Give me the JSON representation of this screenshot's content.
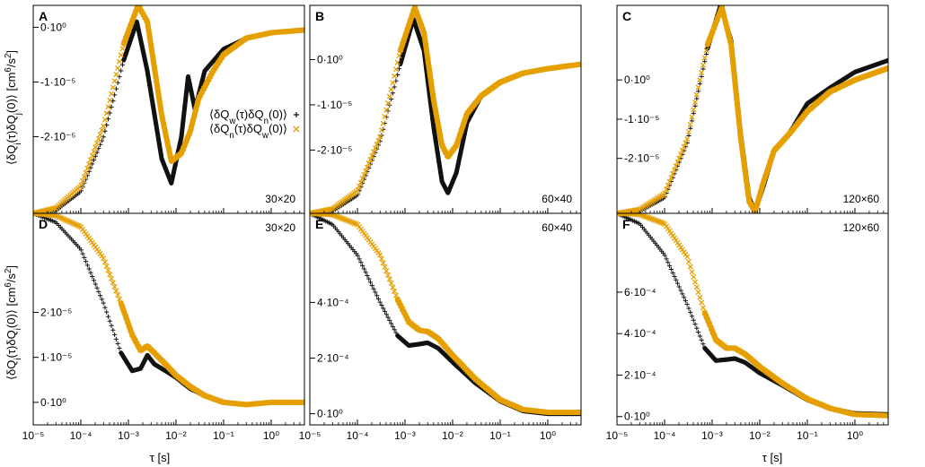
{
  "figure": {
    "ylabel_top": "⟨δQ_i(τ)δQ_j(0)⟩ [cm^6/s^2]",
    "ylabel_bottom": "⟨δQ_i(τ)δQ_i(0)⟩ [cm^6/s^2]",
    "xlabel": "τ [s]"
  },
  "legend": {
    "entries": [
      {
        "label": "⟨δQ_w(τ)δQ_n(0)⟩",
        "marker": "+",
        "color": "#111111"
      },
      {
        "label": "⟨δQ_n(τ)δQ_w(0)⟩",
        "marker": "×",
        "color": "#e69f00"
      }
    ]
  },
  "colors": {
    "black_series": "#111111",
    "orange_series": "#e69f00",
    "frame": "#000000"
  },
  "chart_data": [
    {
      "panel": "A",
      "grid": "30×20",
      "type": "scatter",
      "xscale": "log",
      "xlim": [
        1e-05,
        5
      ],
      "ylim": [
        -3.4e-05,
        4e-06
      ],
      "yticks": [
        {
          "v": 0,
          "label": "0·10⁰"
        },
        {
          "v": -1e-05,
          "label": "-1·10⁻⁵"
        },
        {
          "v": -2e-05,
          "label": "-2·10⁻⁵"
        }
      ],
      "series": [
        {
          "name": "⟨δQ_w(τ)δQ_n(0)⟩",
          "points": [
            [
              1e-05,
              -3.4e-05
            ],
            [
              3e-05,
              -3.35e-05
            ],
            [
              0.0001,
              -3e-05
            ],
            [
              0.0003,
              -2e-05
            ],
            [
              0.0008,
              -6e-06
            ],
            [
              0.0015,
              1e-06
            ],
            [
              0.0025,
              -8e-06
            ],
            [
              0.005,
              -2.4e-05
            ],
            [
              0.008,
              -2.85e-05
            ],
            [
              0.013,
              -2e-05
            ],
            [
              0.018,
              -9e-06
            ],
            [
              0.025,
              -1.5e-05
            ],
            [
              0.04,
              -8e-06
            ],
            [
              0.1,
              -4e-06
            ],
            [
              0.3,
              -2e-06
            ],
            [
              1,
              -1e-06
            ],
            [
              5,
              -5e-07
            ]
          ]
        },
        {
          "name": "⟨δQ_n(τ)δQ_w(0)⟩",
          "points": [
            [
              1e-05,
              -3.4e-05
            ],
            [
              3e-05,
              -3.3e-05
            ],
            [
              0.0001,
              -2.9e-05
            ],
            [
              0.0003,
              -1.8e-05
            ],
            [
              0.0008,
              -3e-06
            ],
            [
              0.0016,
              4e-06
            ],
            [
              0.0025,
              1e-06
            ],
            [
              0.005,
              -1.6e-05
            ],
            [
              0.008,
              -2.45e-05
            ],
            [
              0.013,
              -2.3e-05
            ],
            [
              0.02,
              -1.9e-05
            ],
            [
              0.03,
              -1.3e-05
            ],
            [
              0.06,
              -8e-06
            ],
            [
              0.1,
              -5e-06
            ],
            [
              0.3,
              -2e-06
            ],
            [
              1,
              -1e-06
            ],
            [
              5,
              -5e-07
            ]
          ]
        }
      ]
    },
    {
      "panel": "B",
      "grid": "60×40",
      "type": "scatter",
      "xscale": "log",
      "xlim": [
        1e-05,
        5
      ],
      "ylim": [
        -3.4e-05,
        1.2e-05
      ],
      "yticks": [
        {
          "v": 0,
          "label": "0·10⁰"
        },
        {
          "v": -1e-05,
          "label": "-1·10⁻⁵"
        },
        {
          "v": -2e-05,
          "label": "-2·10⁻⁵"
        }
      ],
      "series": [
        {
          "name": "⟨δQ_w(τ)δQ_n(0)⟩",
          "points": [
            [
              1e-05,
              -3.4e-05
            ],
            [
              3e-05,
              -3.35e-05
            ],
            [
              0.0001,
              -3e-05
            ],
            [
              0.0003,
              -1.8e-05
            ],
            [
              0.0008,
              -1e-06
            ],
            [
              0.0015,
              9e-06
            ],
            [
              0.0025,
              2e-06
            ],
            [
              0.004,
              -1.5e-05
            ],
            [
              0.006,
              -2.7e-05
            ],
            [
              0.008,
              -2.95e-05
            ],
            [
              0.012,
              -2.5e-05
            ],
            [
              0.02,
              -1.4e-05
            ],
            [
              0.04,
              -8e-06
            ],
            [
              0.1,
              -5e-06
            ],
            [
              0.3,
              -3e-06
            ],
            [
              1,
              -2e-06
            ],
            [
              5,
              -1e-06
            ]
          ]
        },
        {
          "name": "⟨δQ_n(τ)δQ_w(0)⟩",
          "points": [
            [
              1e-05,
              -3.4e-05
            ],
            [
              3e-05,
              -3.3e-05
            ],
            [
              0.0001,
              -2.9e-05
            ],
            [
              0.0003,
              -1.7e-05
            ],
            [
              0.0008,
              2e-06
            ],
            [
              0.0016,
              1.15e-05
            ],
            [
              0.0025,
              6e-06
            ],
            [
              0.004,
              -9e-06
            ],
            [
              0.006,
              -1.9e-05
            ],
            [
              0.008,
              -2.15e-05
            ],
            [
              0.012,
              -1.9e-05
            ],
            [
              0.02,
              -1.2e-05
            ],
            [
              0.04,
              -8e-06
            ],
            [
              0.1,
              -5e-06
            ],
            [
              0.3,
              -3e-06
            ],
            [
              1,
              -2e-06
            ],
            [
              5,
              -1e-06
            ]
          ]
        }
      ]
    },
    {
      "panel": "C",
      "grid": "120×60",
      "type": "scatter",
      "xscale": "log",
      "xlim": [
        1e-05,
        5
      ],
      "ylim": [
        -3.4e-05,
        1.9e-05
      ],
      "yticks": [
        {
          "v": 0,
          "label": "0·10⁰"
        },
        {
          "v": -1e-05,
          "label": "-1·10⁻⁵"
        },
        {
          "v": -2e-05,
          "label": "-2·10⁻⁵"
        }
      ],
      "series": [
        {
          "name": "⟨δQ_w(τ)δQ_n(0)⟩",
          "points": [
            [
              1e-05,
              -3.4e-05
            ],
            [
              3e-05,
              -3.35e-05
            ],
            [
              0.0001,
              -3e-05
            ],
            [
              0.0003,
              -1.6e-05
            ],
            [
              0.0008,
              8e-06
            ],
            [
              0.0015,
              1.9e-05
            ],
            [
              0.0025,
              1e-05
            ],
            [
              0.004,
              -1.4e-05
            ],
            [
              0.006,
              -3e-05
            ],
            [
              0.008,
              -3.35e-05
            ],
            [
              0.012,
              -2.7e-05
            ],
            [
              0.02,
              -1.8e-05
            ],
            [
              0.04,
              -1.4e-05
            ],
            [
              0.1,
              -6e-06
            ],
            [
              0.3,
              -2e-06
            ],
            [
              1,
              2e-06
            ],
            [
              5,
              5e-06
            ]
          ]
        },
        {
          "name": "⟨δQ_n(τ)δQ_w(0)⟩",
          "points": [
            [
              1e-05,
              -3.4e-05
            ],
            [
              3e-05,
              -3.3e-05
            ],
            [
              0.0001,
              -2.9e-05
            ],
            [
              0.0003,
              -1.5e-05
            ],
            [
              0.0008,
              9e-06
            ],
            [
              0.0016,
              1.85e-05
            ],
            [
              0.0025,
              9e-06
            ],
            [
              0.004,
              -1.5e-05
            ],
            [
              0.006,
              -3.1e-05
            ],
            [
              0.008,
              -3.35e-05
            ],
            [
              0.012,
              -2.6e-05
            ],
            [
              0.02,
              -1.8e-05
            ],
            [
              0.04,
              -1.4e-05
            ],
            [
              0.1,
              -8e-06
            ],
            [
              0.3,
              -3e-06
            ],
            [
              1,
              0.0
            ],
            [
              5,
              3e-06
            ]
          ]
        }
      ]
    },
    {
      "panel": "D",
      "grid": "30×20",
      "type": "scatter",
      "xscale": "log",
      "xlim": [
        1e-05,
        5
      ],
      "ylim": [
        -5e-06,
        4.2e-05
      ],
      "yticks": [
        {
          "v": 0,
          "label": "0·10⁰"
        },
        {
          "v": 1e-05,
          "label": "1·10⁻⁵"
        },
        {
          "v": 2e-05,
          "label": "2·10⁻⁵"
        }
      ],
      "series": [
        {
          "name": "⟨δQ_w(τ)δQ_n(0)⟩",
          "points": [
            [
              1e-05,
              4.2e-05
            ],
            [
              3e-05,
              4e-05
            ],
            [
              0.0001,
              3.4e-05
            ],
            [
              0.0003,
              2.2e-05
            ],
            [
              0.0007,
              1.1e-05
            ],
            [
              0.0012,
              7e-06
            ],
            [
              0.0018,
              7.5e-06
            ],
            [
              0.0025,
              1.05e-05
            ],
            [
              0.0035,
              8.5e-06
            ],
            [
              0.006,
              7e-06
            ],
            [
              0.01,
              5.5e-06
            ],
            [
              0.02,
              3e-06
            ],
            [
              0.04,
              1.5e-06
            ],
            [
              0.1,
              0.0
            ],
            [
              0.3,
              -5e-07
            ],
            [
              1,
              0.0
            ],
            [
              5,
              0.0
            ]
          ]
        },
        {
          "name": "⟨δQ_n(τ)δQ_w(0)⟩",
          "points": [
            [
              1e-05,
              4.2e-05
            ],
            [
              3e-05,
              4.15e-05
            ],
            [
              0.0001,
              3.9e-05
            ],
            [
              0.0003,
              3.2e-05
            ],
            [
              0.0007,
              2.2e-05
            ],
            [
              0.0012,
              1.5e-05
            ],
            [
              0.0018,
              1.15e-05
            ],
            [
              0.0025,
              1.25e-05
            ],
            [
              0.0035,
              1.1e-05
            ],
            [
              0.006,
              8.5e-06
            ],
            [
              0.01,
              6e-06
            ],
            [
              0.02,
              3.5e-06
            ],
            [
              0.04,
              1.5e-06
            ],
            [
              0.1,
              0.0
            ],
            [
              0.3,
              -5e-07
            ],
            [
              1,
              0.0
            ],
            [
              5,
              0.0
            ]
          ]
        }
      ]
    },
    {
      "panel": "E",
      "grid": "60×40",
      "type": "scatter",
      "xscale": "log",
      "xlim": [
        1e-05,
        5
      ],
      "ylim": [
        -4e-05,
        0.00072
      ],
      "yticks": [
        {
          "v": 0,
          "label": "0·10⁰"
        },
        {
          "v": 0.0002,
          "label": "2·10⁻⁴"
        },
        {
          "v": 0.0004,
          "label": "4·10⁻⁴"
        }
      ],
      "series": [
        {
          "name": "⟨δQ_w(τ)δQ_n(0)⟩",
          "points": [
            [
              1e-05,
              0.00072
            ],
            [
              3e-05,
              0.00068
            ],
            [
              0.0001,
              0.00057
            ],
            [
              0.0003,
              0.0004
            ],
            [
              0.0007,
              0.00028
            ],
            [
              0.0012,
              0.000245
            ],
            [
              0.002,
              0.00025
            ],
            [
              0.003,
              0.000255
            ],
            [
              0.005,
              0.000235
            ],
            [
              0.01,
              0.000185
            ],
            [
              0.03,
              0.00011
            ],
            [
              0.1,
              4.5e-05
            ],
            [
              0.3,
              1e-05
            ],
            [
              1,
              0.0
            ],
            [
              5,
              0.0
            ]
          ]
        },
        {
          "name": "⟨δQ_n(τ)δQ_w(0)⟩",
          "points": [
            [
              1e-05,
              0.00072
            ],
            [
              3e-05,
              0.000715
            ],
            [
              0.0001,
              0.00068
            ],
            [
              0.0003,
              0.00057
            ],
            [
              0.0007,
              0.00041
            ],
            [
              0.0012,
              0.00033
            ],
            [
              0.002,
              0.0003
            ],
            [
              0.003,
              0.000295
            ],
            [
              0.005,
              0.00027
            ],
            [
              0.01,
              0.00021
            ],
            [
              0.03,
              0.000125
            ],
            [
              0.1,
              5e-05
            ],
            [
              0.3,
              1.5e-05
            ],
            [
              1,
              5e-06
            ],
            [
              5,
              5e-06
            ]
          ]
        }
      ]
    },
    {
      "panel": "F",
      "grid": "120×60",
      "type": "scatter",
      "xscale": "log",
      "xlim": [
        1e-05,
        5
      ],
      "ylim": [
        -4e-05,
        0.00098
      ],
      "yticks": [
        {
          "v": 0,
          "label": "0·10⁰"
        },
        {
          "v": 0.0002,
          "label": "2·10⁻⁴"
        },
        {
          "v": 0.0004,
          "label": "4·10⁻⁴"
        },
        {
          "v": 0.0006,
          "label": "6·10⁻⁴"
        }
      ],
      "series": [
        {
          "name": "⟨δQ_w(τ)δQ_n(0)⟩",
          "points": [
            [
              1e-05,
              0.00098
            ],
            [
              3e-05,
              0.00093
            ],
            [
              0.0001,
              0.00078
            ],
            [
              0.0003,
              0.00054
            ],
            [
              0.0007,
              0.00033
            ],
            [
              0.0012,
              0.00027
            ],
            [
              0.002,
              0.000275
            ],
            [
              0.003,
              0.00028
            ],
            [
              0.005,
              0.00026
            ],
            [
              0.01,
              0.00021
            ],
            [
              0.03,
              0.00015
            ],
            [
              0.1,
              8e-05
            ],
            [
              0.3,
              4e-05
            ],
            [
              1,
              1.5e-05
            ],
            [
              5,
              1e-05
            ]
          ]
        },
        {
          "name": "⟨δQ_n(τ)δQ_w(0)⟩",
          "points": [
            [
              1e-05,
              0.00098
            ],
            [
              3e-05,
              0.000975
            ],
            [
              0.0001,
              0.00093
            ],
            [
              0.0003,
              0.00077
            ],
            [
              0.0007,
              0.0005
            ],
            [
              0.0012,
              0.00037
            ],
            [
              0.002,
              0.00033
            ],
            [
              0.003,
              0.00033
            ],
            [
              0.005,
              0.0003
            ],
            [
              0.01,
              0.00024
            ],
            [
              0.03,
              0.00016
            ],
            [
              0.1,
              8.5e-05
            ],
            [
              0.3,
              4e-05
            ],
            [
              1,
              1e-05
            ],
            [
              5,
              5e-06
            ]
          ]
        }
      ]
    }
  ],
  "xticks": [
    {
      "v": 1e-05,
      "label": "10⁻⁵"
    },
    {
      "v": 0.0001,
      "label": "10⁻⁴"
    },
    {
      "v": 0.001,
      "label": "10⁻³"
    },
    {
      "v": 0.01,
      "label": "10⁻²"
    },
    {
      "v": 0.1,
      "label": "10⁻¹"
    },
    {
      "v": 1,
      "label": "10⁰"
    }
  ]
}
